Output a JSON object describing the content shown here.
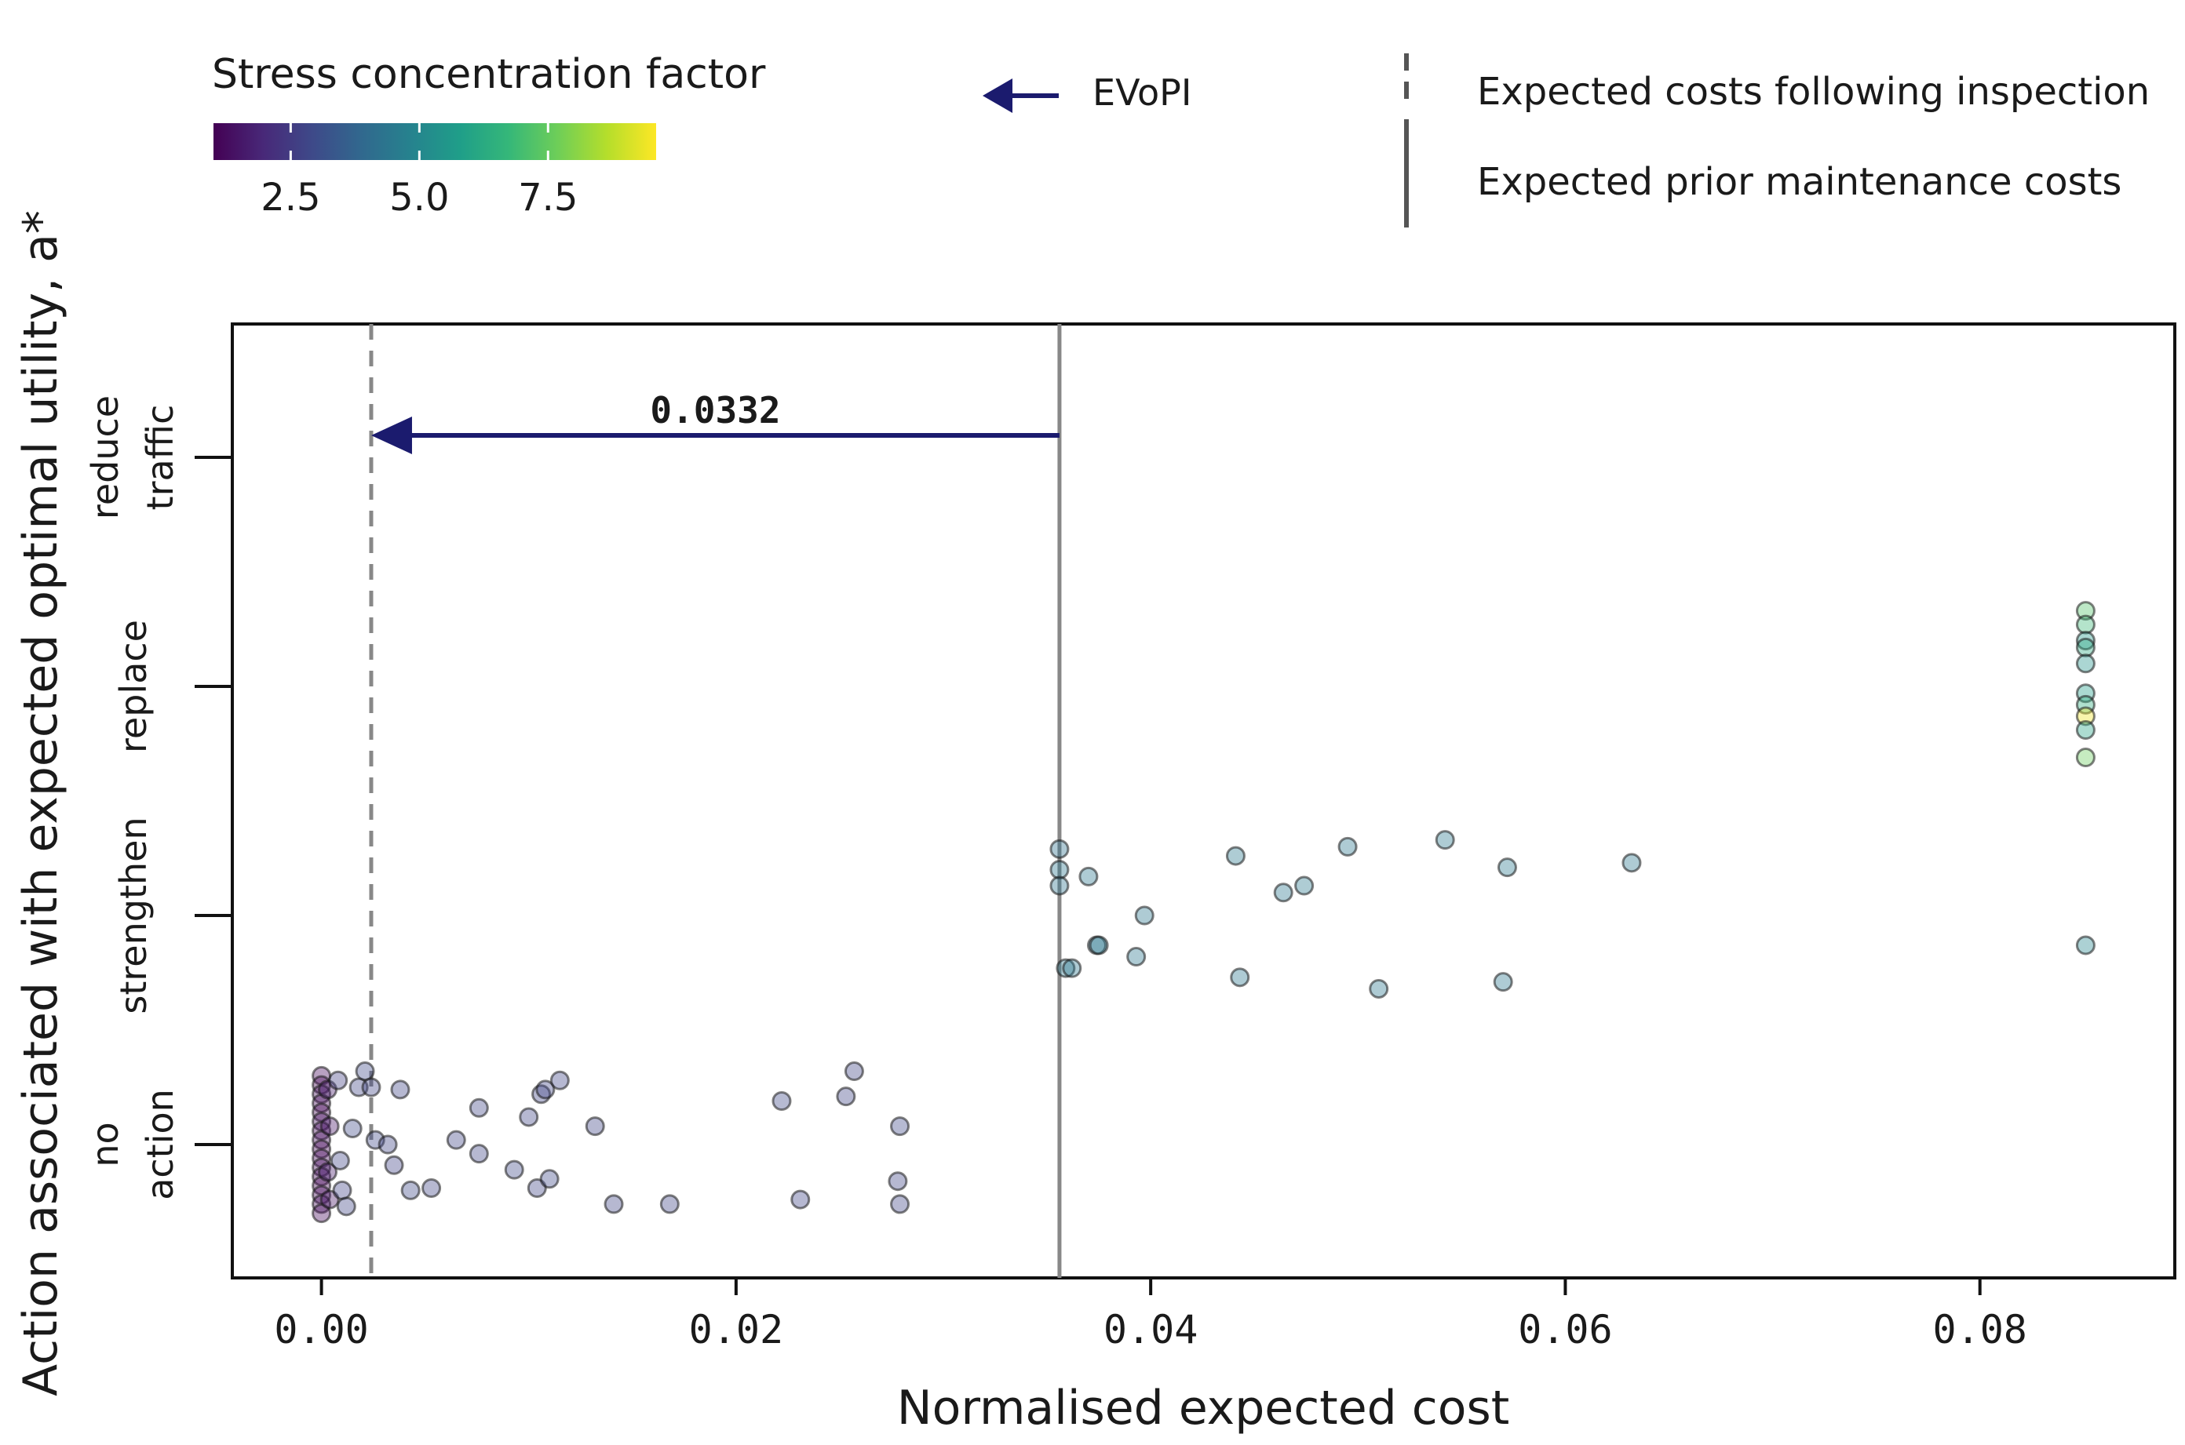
{
  "chart_data": {
    "type": "scatter",
    "xlabel": "Normalised expected cost",
    "ylabel": "Action associated with expected optimal utility, a*",
    "xlim": [
      -0.0043,
      0.0894
    ],
    "x_ticks": [
      0.0,
      0.02,
      0.04,
      0.06,
      0.08
    ],
    "x_tick_labels": [
      "0.00",
      "0.02",
      "0.04",
      "0.06",
      "0.08"
    ],
    "categories": [
      "no action",
      "strengthen",
      "replace",
      "reduce traffic"
    ],
    "category_labels": [
      {
        "line1": "no",
        "line2": "action"
      },
      {
        "line1": "strengthen",
        "line2": ""
      },
      {
        "line1": "replace",
        "line2": ""
      },
      {
        "line1": "reduce",
        "line2": "traffic"
      }
    ],
    "colorbar": {
      "title": "Stress concentration factor",
      "range": [
        1.0,
        9.6
      ],
      "ticks": [
        2.5,
        5.0,
        7.5
      ],
      "tick_labels": [
        "2.5",
        "5.0",
        "7.5"
      ],
      "colormap": "viridis",
      "stops": [
        "#440154",
        "#482878",
        "#3e4989",
        "#31688e",
        "#26828e",
        "#1f9e89",
        "#35b779",
        "#6ece58",
        "#b5de2b",
        "#fde725"
      ]
    },
    "reference_lines": {
      "posterior_expected_cost": 0.0024,
      "prior_expected_cost": 0.0356
    },
    "evopi": {
      "value": 0.0332,
      "label": "0.0332",
      "color": "#1b1b6e"
    },
    "legend": {
      "evopi_label": "EVoPI",
      "dashed_label": "Expected costs following inspection",
      "solid_label": "Expected prior maintenance costs"
    },
    "series": [
      {
        "name": "no action",
        "points": [
          {
            "x": 0.0,
            "y": 0.3,
            "s": 1.2
          },
          {
            "x": 0.0,
            "y": 0.26,
            "s": 1.1
          },
          {
            "x": 0.0,
            "y": 0.22,
            "s": 1.3
          },
          {
            "x": 0.0,
            "y": 0.18,
            "s": 1.2
          },
          {
            "x": 0.0,
            "y": 0.14,
            "s": 1.1
          },
          {
            "x": 0.0,
            "y": 0.1,
            "s": 1.4
          },
          {
            "x": 0.0,
            "y": 0.06,
            "s": 1.2
          },
          {
            "x": 0.0,
            "y": 0.02,
            "s": 1.3
          },
          {
            "x": 0.0,
            "y": -0.02,
            "s": 1.1
          },
          {
            "x": 0.0,
            "y": -0.06,
            "s": 1.2
          },
          {
            "x": 0.0,
            "y": -0.1,
            "s": 1.3
          },
          {
            "x": 0.0,
            "y": -0.14,
            "s": 1.2
          },
          {
            "x": 0.0,
            "y": -0.18,
            "s": 1.1
          },
          {
            "x": 0.0,
            "y": -0.22,
            "s": 1.2
          },
          {
            "x": 0.0,
            "y": -0.26,
            "s": 1.3
          },
          {
            "x": 0.0,
            "y": -0.3,
            "s": 1.2
          },
          {
            "x": 0.0003,
            "y": 0.24,
            "s": 1.6
          },
          {
            "x": 0.0004,
            "y": 0.08,
            "s": 1.5
          },
          {
            "x": 0.0003,
            "y": -0.12,
            "s": 1.6
          },
          {
            "x": 0.0004,
            "y": -0.24,
            "s": 1.5
          },
          {
            "x": 0.0008,
            "y": 0.28,
            "s": 2.6
          },
          {
            "x": 0.0009,
            "y": -0.07,
            "s": 2.8
          },
          {
            "x": 0.001,
            "y": -0.2,
            "s": 2.7
          },
          {
            "x": 0.0012,
            "y": -0.27,
            "s": 2.8
          },
          {
            "x": 0.0015,
            "y": 0.07,
            "s": 2.9
          },
          {
            "x": 0.0018,
            "y": 0.25,
            "s": 2.8
          },
          {
            "x": 0.0021,
            "y": 0.32,
            "s": 2.9
          },
          {
            "x": 0.0024,
            "y": 0.25,
            "s": 2.8
          },
          {
            "x": 0.0026,
            "y": 0.02,
            "s": 2.9
          },
          {
            "x": 0.0032,
            "y": 0.0,
            "s": 2.8
          },
          {
            "x": 0.0035,
            "y": -0.09,
            "s": 2.7
          },
          {
            "x": 0.0038,
            "y": 0.24,
            "s": 2.8
          },
          {
            "x": 0.0043,
            "y": -0.2,
            "s": 2.9
          },
          {
            "x": 0.0053,
            "y": -0.19,
            "s": 2.8
          },
          {
            "x": 0.0065,
            "y": 0.02,
            "s": 2.8
          },
          {
            "x": 0.0076,
            "y": 0.16,
            "s": 2.8
          },
          {
            "x": 0.0076,
            "y": -0.04,
            "s": 2.8
          },
          {
            "x": 0.0093,
            "y": -0.11,
            "s": 2.9
          },
          {
            "x": 0.01,
            "y": 0.12,
            "s": 2.8
          },
          {
            "x": 0.0104,
            "y": -0.19,
            "s": 2.8
          },
          {
            "x": 0.0106,
            "y": 0.22,
            "s": 2.8
          },
          {
            "x": 0.0108,
            "y": 0.24,
            "s": 2.8
          },
          {
            "x": 0.011,
            "y": -0.15,
            "s": 2.9
          },
          {
            "x": 0.0115,
            "y": 0.28,
            "s": 2.8
          },
          {
            "x": 0.0132,
            "y": 0.08,
            "s": 2.8
          },
          {
            "x": 0.0141,
            "y": -0.26,
            "s": 2.8
          },
          {
            "x": 0.0168,
            "y": -0.26,
            "s": 2.8
          },
          {
            "x": 0.0222,
            "y": 0.19,
            "s": 2.9
          },
          {
            "x": 0.0231,
            "y": -0.24,
            "s": 2.8
          },
          {
            "x": 0.0253,
            "y": 0.21,
            "s": 2.8
          },
          {
            "x": 0.0257,
            "y": 0.32,
            "s": 2.8
          },
          {
            "x": 0.0279,
            "y": 0.08,
            "s": 2.9
          },
          {
            "x": 0.0278,
            "y": -0.16,
            "s": 2.8
          },
          {
            "x": 0.0279,
            "y": -0.26,
            "s": 2.8
          }
        ]
      },
      {
        "name": "strengthen",
        "points": [
          {
            "x": 0.0356,
            "y": 0.29,
            "s": 4.2
          },
          {
            "x": 0.0356,
            "y": 0.2,
            "s": 4.4
          },
          {
            "x": 0.0356,
            "y": 0.13,
            "s": 4.3
          },
          {
            "x": 0.0359,
            "y": -0.23,
            "s": 4.5
          },
          {
            "x": 0.0362,
            "y": -0.23,
            "s": 4.4
          },
          {
            "x": 0.037,
            "y": 0.17,
            "s": 4.4
          },
          {
            "x": 0.0374,
            "y": -0.13,
            "s": 4.3
          },
          {
            "x": 0.0375,
            "y": -0.13,
            "s": 4.5
          },
          {
            "x": 0.0393,
            "y": -0.18,
            "s": 4.4
          },
          {
            "x": 0.0397,
            "y": 0.0,
            "s": 4.4
          },
          {
            "x": 0.0441,
            "y": 0.26,
            "s": 4.5
          },
          {
            "x": 0.0443,
            "y": -0.27,
            "s": 4.4
          },
          {
            "x": 0.0464,
            "y": 0.1,
            "s": 4.4
          },
          {
            "x": 0.0474,
            "y": 0.13,
            "s": 4.5
          },
          {
            "x": 0.0495,
            "y": 0.3,
            "s": 4.4
          },
          {
            "x": 0.051,
            "y": -0.32,
            "s": 4.4
          },
          {
            "x": 0.0542,
            "y": 0.33,
            "s": 4.5
          },
          {
            "x": 0.057,
            "y": -0.29,
            "s": 4.4
          },
          {
            "x": 0.0572,
            "y": 0.21,
            "s": 4.5
          },
          {
            "x": 0.0632,
            "y": 0.23,
            "s": 4.4
          },
          {
            "x": 0.0851,
            "y": -0.13,
            "s": 5.0
          }
        ]
      },
      {
        "name": "replace",
        "points": [
          {
            "x": 0.0851,
            "y": 0.33,
            "s": 7.2
          },
          {
            "x": 0.0851,
            "y": 0.27,
            "s": 6.8
          },
          {
            "x": 0.0851,
            "y": 0.2,
            "s": 5.6
          },
          {
            "x": 0.0851,
            "y": 0.17,
            "s": 6.2
          },
          {
            "x": 0.0851,
            "y": 0.1,
            "s": 5.4
          },
          {
            "x": 0.0851,
            "y": -0.03,
            "s": 5.8
          },
          {
            "x": 0.0851,
            "y": -0.08,
            "s": 6.4
          },
          {
            "x": 0.0851,
            "y": -0.13,
            "s": 9.4
          },
          {
            "x": 0.0851,
            "y": -0.19,
            "s": 6.0
          },
          {
            "x": 0.0851,
            "y": -0.31,
            "s": 7.6
          }
        ]
      }
    ]
  }
}
